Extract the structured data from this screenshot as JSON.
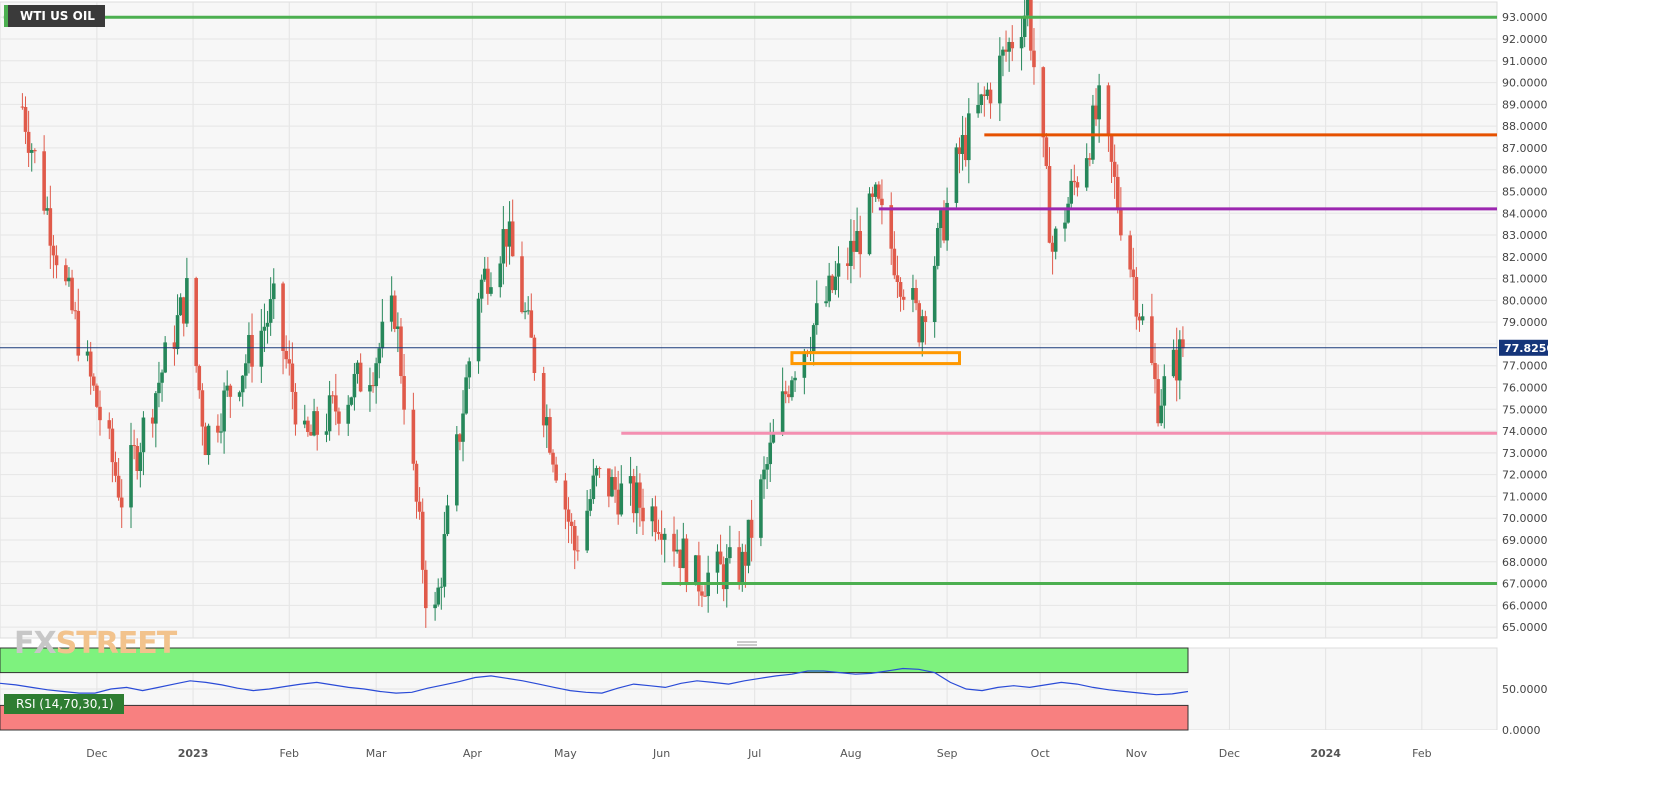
{
  "title": "WTI US OIL",
  "logo": {
    "part1": "FX",
    "part2": "STREET"
  },
  "chart_data": {
    "type": "candlestick",
    "title": "WTI US OIL",
    "price_axis": {
      "range": [
        64.5,
        93.7
      ],
      "ticks": [
        "93.0000",
        "92.0000",
        "91.0000",
        "90.0000",
        "89.0000",
        "88.0000",
        "87.0000",
        "86.0000",
        "85.0000",
        "84.0000",
        "83.0000",
        "82.0000",
        "81.0000",
        "80.0000",
        "79.0000",
        "78.0000",
        "77.0000",
        "76.0000",
        "75.0000",
        "74.0000",
        "73.0000",
        "72.0000",
        "71.0000",
        "70.0000",
        "69.0000",
        "68.0000",
        "67.0000",
        "66.0000",
        "65.0000"
      ]
    },
    "time_axis": {
      "labels": [
        "Dec",
        "2023",
        "Feb",
        "Mar",
        "Apr",
        "May",
        "Jun",
        "Jul",
        "Aug",
        "Sep",
        "Oct",
        "Nov",
        "Dec",
        "2024",
        "Feb"
      ]
    },
    "current_price": "77.8250",
    "current_price_value": 77.825,
    "horizontal_levels": [
      {
        "price": 93.0,
        "color": "#4caf50",
        "from": "start",
        "to": "end"
      },
      {
        "price": 87.6,
        "color": "#e65100",
        "from": "Sep 2023",
        "to": "end"
      },
      {
        "price": 84.2,
        "color": "#9c27b0",
        "from": "Aug 2023",
        "to": "end"
      },
      {
        "price": 73.9,
        "color": "#f48fb1",
        "from": "May 2023",
        "to": "end"
      },
      {
        "price": 67.0,
        "color": "#4caf50",
        "from": "Jun 2023",
        "to": "end"
      }
    ],
    "highlight_box": {
      "price_low": 77.1,
      "price_high": 77.6,
      "from": "Jul 2023",
      "to": "Aug 2023",
      "color": "#ff9800"
    },
    "candles_close_approx": [
      {
        "date": "2022-11-07",
        "close": 88.9
      },
      {
        "date": "2022-11-21",
        "close": 80.5
      },
      {
        "date": "2022-12-09",
        "close": 71.0
      },
      {
        "date": "2022-12-30",
        "close": 80.3
      },
      {
        "date": "2023-01-05",
        "close": 73.7
      },
      {
        "date": "2023-01-27",
        "close": 79.7
      },
      {
        "date": "2023-02-06",
        "close": 73.4
      },
      {
        "date": "2023-02-28",
        "close": 77.1
      },
      {
        "date": "2023-03-07",
        "close": 79.6
      },
      {
        "date": "2023-03-17",
        "close": 66.7
      },
      {
        "date": "2023-03-20",
        "close": 65.5
      },
      {
        "date": "2023-04-03",
        "close": 80.5
      },
      {
        "date": "2023-04-12",
        "close": 83.2
      },
      {
        "date": "2023-05-04",
        "close": 68.6
      },
      {
        "date": "2023-05-11",
        "close": 71.8
      },
      {
        "date": "2023-06-01",
        "close": 70.1
      },
      {
        "date": "2023-06-12",
        "close": 67.2
      },
      {
        "date": "2023-06-27",
        "close": 67.8
      },
      {
        "date": "2023-07-13",
        "close": 76.9
      },
      {
        "date": "2023-08-09",
        "close": 84.4
      },
      {
        "date": "2023-08-23",
        "close": 78.9
      },
      {
        "date": "2023-09-05",
        "close": 86.7
      },
      {
        "date": "2023-09-27",
        "close": 93.6
      },
      {
        "date": "2023-10-05",
        "close": 82.3
      },
      {
        "date": "2023-10-20",
        "close": 88.8
      },
      {
        "date": "2023-11-08",
        "close": 75.4
      },
      {
        "date": "2023-11-16",
        "close": 77.8
      }
    ],
    "rsi": {
      "label": "RSI (14,70,30,1)",
      "ticks": [
        "50.0000",
        "0.0000"
      ],
      "overbought": 70,
      "oversold": 30,
      "values_approx": [
        57,
        55,
        52,
        49,
        47,
        45,
        45,
        50,
        52,
        48,
        52,
        56,
        60,
        58,
        55,
        51,
        48,
        50,
        53,
        56,
        58,
        55,
        52,
        50,
        47,
        45,
        46,
        51,
        55,
        59,
        64,
        66,
        63,
        60,
        56,
        52,
        48,
        46,
        45,
        51,
        56,
        54,
        52,
        57,
        60,
        58,
        56,
        60,
        63,
        66,
        68,
        72,
        72,
        70,
        68,
        69,
        72,
        75,
        74,
        70,
        58,
        50,
        48,
        52,
        54,
        52,
        55,
        58,
        56,
        52,
        49,
        47,
        45,
        43,
        44,
        47
      ]
    }
  }
}
